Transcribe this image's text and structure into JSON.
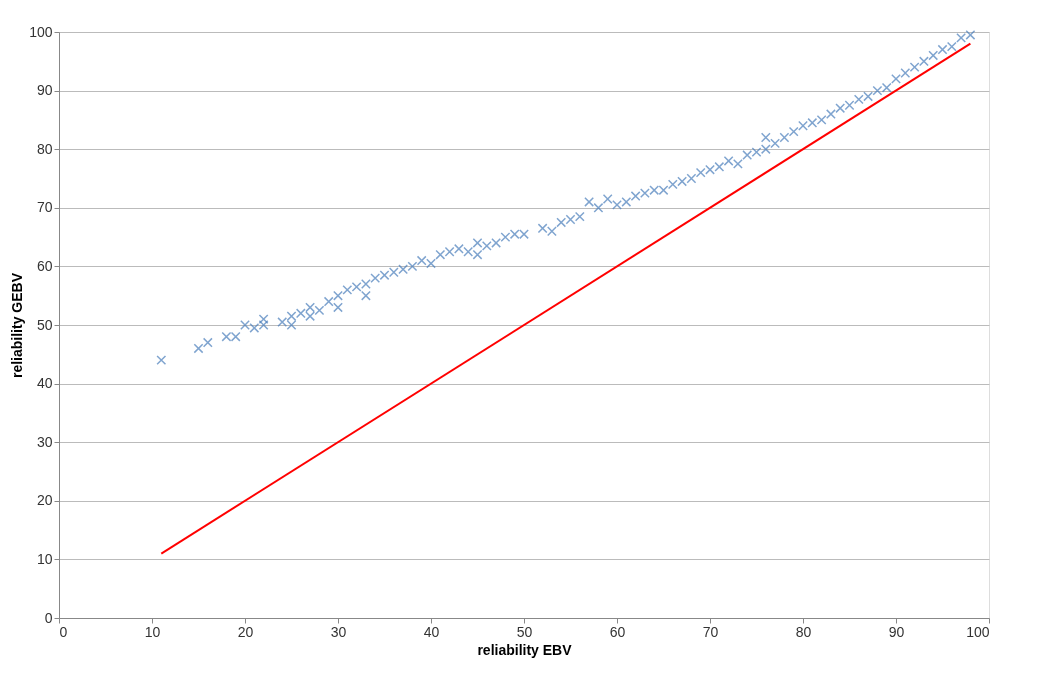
{
  "chart_data": {
    "type": "scatter",
    "xlabel": "reliability EBV",
    "ylabel": "reliability GEBV",
    "xlim": [
      0,
      100
    ],
    "ylim": [
      0,
      100
    ],
    "xticks": [
      0,
      10,
      20,
      30,
      40,
      50,
      60,
      70,
      80,
      90,
      100
    ],
    "yticks": [
      0,
      10,
      20,
      30,
      40,
      50,
      60,
      70,
      80,
      90,
      100
    ],
    "grid": "y",
    "series": [
      {
        "color": "#4a7ebb",
        "marker": "cross",
        "x": [
          11,
          15,
          16,
          18,
          19,
          20,
          21,
          22,
          22,
          24,
          25,
          25,
          26,
          27,
          27,
          28,
          29,
          30,
          30,
          31,
          32,
          33,
          33,
          34,
          35,
          36,
          37,
          38,
          39,
          40,
          41,
          42,
          43,
          44,
          45,
          45,
          46,
          47,
          48,
          49,
          50,
          52,
          53,
          54,
          55,
          56,
          57,
          58,
          59,
          60,
          61,
          62,
          63,
          64,
          65,
          66,
          67,
          68,
          69,
          70,
          71,
          72,
          73,
          74,
          75,
          76,
          76,
          77,
          78,
          79,
          80,
          81,
          82,
          83,
          84,
          85,
          86,
          87,
          88,
          89,
          90,
          91,
          92,
          93,
          94,
          95,
          96,
          97,
          98
        ],
        "values": [
          44,
          46,
          47,
          48,
          48,
          50,
          49.5,
          50,
          51,
          50.5,
          50,
          51.5,
          52,
          51.5,
          53,
          52.5,
          54,
          53,
          55,
          56,
          56.5,
          55,
          57,
          58,
          58.5,
          59,
          59.5,
          60,
          61,
          60.5,
          62,
          62.5,
          63,
          62.5,
          64,
          62,
          63.5,
          64,
          65,
          65.5,
          65.5,
          66.5,
          66,
          67.5,
          68,
          68.5,
          71,
          70,
          71.5,
          70.5,
          71,
          72,
          72.5,
          73,
          73,
          74,
          74.5,
          75,
          76,
          76.5,
          77,
          78,
          77.5,
          79,
          79.5,
          80,
          82,
          81,
          82,
          83,
          84,
          84.5,
          85,
          86,
          87,
          87.5,
          88.5,
          89,
          90,
          90.5,
          92,
          93,
          94,
          95,
          96,
          97,
          97.5,
          99,
          99.5
        ]
      },
      {
        "type": "line",
        "color": "#ff0000",
        "line_style": "solid",
        "marker": "none",
        "x": [
          11,
          98
        ],
        "values": [
          11,
          98
        ]
      }
    ]
  }
}
